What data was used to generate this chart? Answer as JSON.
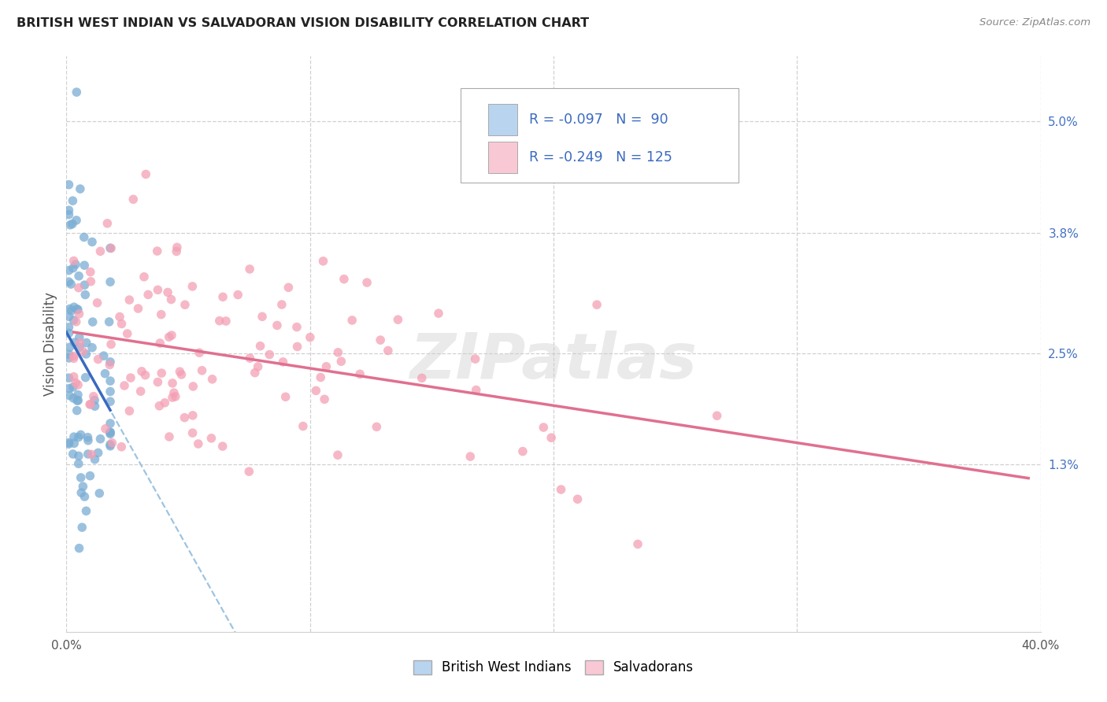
{
  "title": "BRITISH WEST INDIAN VS SALVADORAN VISION DISABILITY CORRELATION CHART",
  "source": "Source: ZipAtlas.com",
  "ylabel": "Vision Disability",
  "ytick_labels": [
    "5.0%",
    "3.8%",
    "2.5%",
    "1.3%"
  ],
  "ytick_values": [
    0.05,
    0.038,
    0.025,
    0.013
  ],
  "xlim": [
    0.0,
    0.4
  ],
  "ylim": [
    -0.005,
    0.057
  ],
  "watermark": "ZIPatlas",
  "legend_blue_label": "British West Indians",
  "legend_pink_label": "Salvadorans",
  "r_blue": -0.097,
  "n_blue": 90,
  "r_pink": -0.249,
  "n_pink": 125,
  "blue_dot_color": "#7aadd4",
  "pink_dot_color": "#f4a0b5",
  "blue_line_color": "#3a6abf",
  "pink_line_color": "#e07090",
  "blue_dash_color": "#9ec4e0",
  "blue_fill": "#b8d4ef",
  "pink_fill": "#f9c8d5",
  "legend_text_dark": "#333333",
  "legend_text_blue": "#3a6abf",
  "ytick_color": "#4472c4",
  "xtick_color": "#555555",
  "grid_color": "#d0d0d0"
}
